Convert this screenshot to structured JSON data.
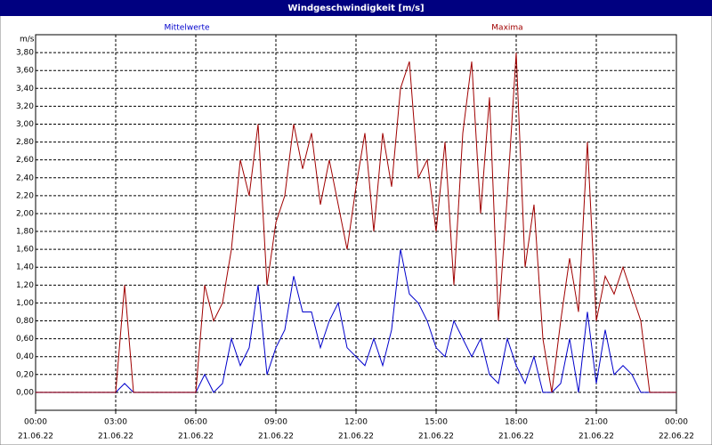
{
  "chart_data": {
    "type": "line",
    "title": "Windgeschwindigkeit [m/s]",
    "y_label": "m/s",
    "x": [
      0,
      20,
      40,
      60,
      80,
      100,
      120,
      140,
      160,
      180,
      200,
      220,
      240,
      260,
      280,
      300,
      320,
      340,
      360,
      380,
      400,
      420,
      440,
      460,
      480,
      500,
      520,
      540,
      560,
      580,
      600,
      620,
      640,
      660,
      680,
      700,
      720,
      740,
      760,
      780,
      800,
      820,
      840,
      860,
      880,
      900,
      920,
      940,
      960,
      980,
      1000,
      1020,
      1040,
      1060,
      1080,
      1100,
      1120,
      1140,
      1160,
      1180,
      1200,
      1220,
      1240,
      1260,
      1280,
      1300,
      1320,
      1340,
      1360,
      1380,
      1400,
      1420,
      1440
    ],
    "series": [
      {
        "name": "Mittelwerte",
        "color": "#0000cc",
        "values": [
          0,
          0,
          0,
          0,
          0,
          0,
          0,
          0,
          0,
          0,
          0.1,
          0,
          0,
          0,
          0,
          0,
          0,
          0,
          0,
          0.2,
          0,
          0.1,
          0.6,
          0.3,
          0.5,
          1.2,
          0.2,
          0.5,
          0.7,
          1.3,
          0.9,
          0.9,
          0.5,
          0.8,
          1.0,
          0.5,
          0.4,
          0.3,
          0.6,
          0.3,
          0.7,
          1.6,
          1.1,
          1.0,
          0.8,
          0.5,
          0.4,
          0.8,
          0.6,
          0.4,
          0.6,
          0.2,
          0.1,
          0.6,
          0.3,
          0.1,
          0.4,
          0,
          0,
          0.1,
          0.6,
          0,
          0.9,
          0.1,
          0.7,
          0.2,
          0.3,
          0.2,
          0,
          0,
          0,
          0,
          0
        ]
      },
      {
        "name": "Maxima",
        "color": "#a00000",
        "values": [
          0,
          0,
          0,
          0,
          0,
          0,
          0,
          0,
          0,
          0,
          1.2,
          0,
          0,
          0,
          0,
          0,
          0,
          0,
          0,
          1.2,
          0.8,
          1.0,
          1.6,
          2.6,
          2.2,
          3.0,
          1.2,
          1.9,
          2.2,
          3.0,
          2.5,
          2.9,
          2.1,
          2.6,
          2.1,
          1.6,
          2.3,
          2.9,
          1.8,
          2.9,
          2.3,
          3.4,
          3.7,
          2.4,
          2.6,
          1.8,
          2.8,
          1.2,
          2.9,
          3.7,
          2.0,
          3.3,
          0.8,
          2.2,
          3.8,
          1.4,
          2.1,
          0.6,
          0,
          0.8,
          1.5,
          0.9,
          2.8,
          0.8,
          1.3,
          1.1,
          1.4,
          1.1,
          0.8,
          0,
          0,
          0,
          0
        ]
      }
    ],
    "xlim": [
      0,
      1440
    ],
    "ylim": [
      -0.2,
      4.0
    ],
    "xticks": [
      {
        "value": 0,
        "label": "00:00",
        "date": "21.06.22"
      },
      {
        "value": 180,
        "label": "03:00",
        "date": "21.06.22"
      },
      {
        "value": 360,
        "label": "06:00",
        "date": "21.06.22"
      },
      {
        "value": 540,
        "label": "09:00",
        "date": "21.06.22"
      },
      {
        "value": 720,
        "label": "12:00",
        "date": "21.06.22"
      },
      {
        "value": 900,
        "label": "15:00",
        "date": "21.06.22"
      },
      {
        "value": 1080,
        "label": "18:00",
        "date": "21.06.22"
      },
      {
        "value": 1260,
        "label": "21:00",
        "date": "21.06.22"
      },
      {
        "value": 1440,
        "label": "00:00",
        "date": "22.06.22"
      }
    ],
    "yticks": [
      {
        "value": 0,
        "label": "0,00"
      },
      {
        "value": 0.2,
        "label": "0,20"
      },
      {
        "value": 0.4,
        "label": "0,40"
      },
      {
        "value": 0.6,
        "label": "0,60"
      },
      {
        "value": 0.8,
        "label": "0,80"
      },
      {
        "value": 1.0,
        "label": "1,00"
      },
      {
        "value": 1.2,
        "label": "1,20"
      },
      {
        "value": 1.4,
        "label": "1,40"
      },
      {
        "value": 1.6,
        "label": "1,60"
      },
      {
        "value": 1.8,
        "label": "1,80"
      },
      {
        "value": 2.0,
        "label": "2,00"
      },
      {
        "value": 2.2,
        "label": "2,20"
      },
      {
        "value": 2.4,
        "label": "2,40"
      },
      {
        "value": 2.6,
        "label": "2,60"
      },
      {
        "value": 2.8,
        "label": "2,80"
      },
      {
        "value": 3.0,
        "label": "3,00"
      },
      {
        "value": 3.2,
        "label": "3,20"
      },
      {
        "value": 3.4,
        "label": "3,40"
      },
      {
        "value": 3.6,
        "label": "3,60"
      },
      {
        "value": 3.8,
        "label": "3,80"
      }
    ],
    "grid": true
  }
}
